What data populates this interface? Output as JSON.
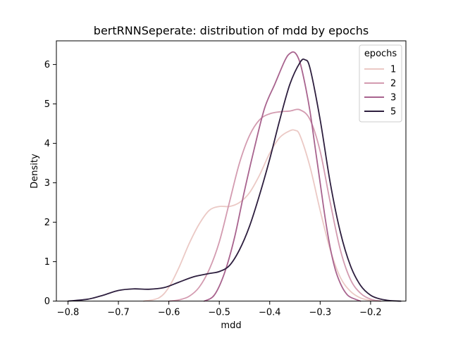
{
  "chart_data": {
    "type": "line",
    "title": "bertRNNSeperate: distribution of mdd by epochs",
    "xlabel": "mdd",
    "ylabel": "Density",
    "xlim": [
      -0.823,
      -0.13
    ],
    "ylim": [
      0,
      6.6
    ],
    "x_ticks": [
      -0.8,
      -0.7,
      -0.6,
      -0.5,
      -0.4,
      -0.3,
      -0.2
    ],
    "x_tick_labels": [
      "−0.8",
      "−0.7",
      "−0.6",
      "−0.5",
      "−0.4",
      "−0.3",
      "−0.2"
    ],
    "y_ticks": [
      0,
      1,
      2,
      3,
      4,
      5,
      6
    ],
    "y_tick_labels": [
      "0",
      "1",
      "2",
      "3",
      "4",
      "5",
      "6"
    ],
    "grid": false,
    "legend": {
      "title": "epochs",
      "position": "top-right"
    },
    "series": [
      {
        "name": "1",
        "color": "#ebc9c5",
        "x": [
          -0.65,
          -0.62,
          -0.6,
          -0.58,
          -0.56,
          -0.54,
          -0.52,
          -0.5,
          -0.48,
          -0.46,
          -0.44,
          -0.42,
          -0.4,
          -0.38,
          -0.36,
          -0.35,
          -0.34,
          -0.32,
          -0.3,
          -0.28,
          -0.26,
          -0.24,
          -0.22,
          -0.2,
          -0.18
        ],
        "y": [
          0.0,
          0.08,
          0.35,
          0.85,
          1.45,
          1.95,
          2.3,
          2.4,
          2.4,
          2.5,
          2.75,
          3.2,
          3.75,
          4.15,
          4.32,
          4.33,
          4.2,
          3.4,
          2.3,
          1.3,
          0.6,
          0.25,
          0.08,
          0.02,
          0.0
        ]
      },
      {
        "name": "2",
        "color": "#d39bb0",
        "x": [
          -0.6,
          -0.58,
          -0.56,
          -0.54,
          -0.52,
          -0.5,
          -0.48,
          -0.46,
          -0.44,
          -0.42,
          -0.4,
          -0.38,
          -0.36,
          -0.34,
          -0.32,
          -0.3,
          -0.28,
          -0.26,
          -0.24,
          -0.22,
          -0.2,
          -0.18
        ],
        "y": [
          0.0,
          0.03,
          0.12,
          0.35,
          0.8,
          1.5,
          2.5,
          3.5,
          4.2,
          4.6,
          4.75,
          4.8,
          4.82,
          4.85,
          4.6,
          3.8,
          2.5,
          1.3,
          0.55,
          0.2,
          0.05,
          0.0
        ]
      },
      {
        "name": "3",
        "color": "#a8638e",
        "x": [
          -0.53,
          -0.51,
          -0.49,
          -0.47,
          -0.45,
          -0.43,
          -0.41,
          -0.39,
          -0.37,
          -0.36,
          -0.35,
          -0.34,
          -0.33,
          -0.32,
          -0.31,
          -0.3,
          -0.29,
          -0.28,
          -0.27,
          -0.26,
          -0.25,
          -0.24,
          -0.22
        ],
        "y": [
          0.0,
          0.15,
          0.7,
          1.6,
          2.8,
          3.9,
          4.9,
          5.5,
          6.1,
          6.28,
          6.3,
          6.05,
          5.5,
          4.8,
          3.9,
          3.0,
          2.1,
          1.35,
          0.8,
          0.45,
          0.22,
          0.1,
          0.0
        ]
      },
      {
        "name": "5",
        "color": "#2d1e3e",
        "x": [
          -0.8,
          -0.76,
          -0.73,
          -0.7,
          -0.67,
          -0.64,
          -0.61,
          -0.58,
          -0.55,
          -0.52,
          -0.5,
          -0.48,
          -0.46,
          -0.44,
          -0.42,
          -0.4,
          -0.38,
          -0.36,
          -0.34,
          -0.33,
          -0.32,
          -0.3,
          -0.28,
          -0.26,
          -0.24,
          -0.22,
          -0.2,
          -0.18,
          -0.16,
          -0.14
        ],
        "y": [
          0.0,
          0.05,
          0.15,
          0.27,
          0.31,
          0.3,
          0.34,
          0.48,
          0.62,
          0.7,
          0.75,
          0.9,
          1.3,
          1.9,
          2.7,
          3.6,
          4.6,
          5.5,
          6.05,
          6.12,
          5.9,
          4.6,
          3.0,
          1.75,
          0.9,
          0.4,
          0.15,
          0.05,
          0.01,
          0.0
        ]
      }
    ]
  }
}
